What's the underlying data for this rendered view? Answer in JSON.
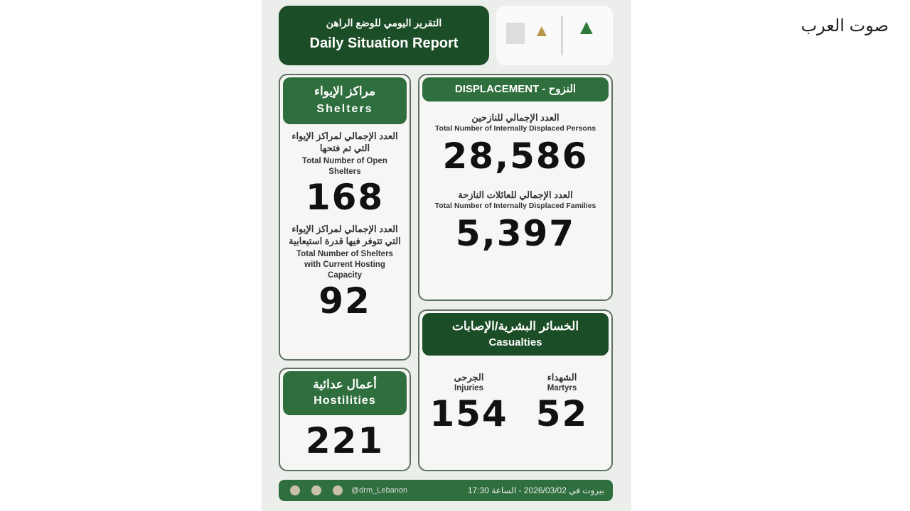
{
  "watermark": "صوت العرب",
  "header": {
    "title_ar": "التقرير اليومي للوضع الراهن",
    "title_en": "Daily Situation Report"
  },
  "shelters": {
    "title_ar": "مراكز الإيواء",
    "title_en": "Shelters",
    "open_label_ar": "العدد الإجمالي لمراكز الإيواء التي تم فتحها",
    "open_label_en": "Total Number of Open Shelters",
    "open_value": "168",
    "capacity_label_ar": "العدد الإجمالي لمراكز الإيواء التي تتوفر فيها قدرة استيعابية",
    "capacity_label_en": "Total Number of Shelters with Current Hosting Capacity",
    "capacity_value": "92"
  },
  "hostilities": {
    "title_ar": "أعمال عدائية",
    "title_en": "Hostilities",
    "value": "221"
  },
  "displacement": {
    "title": "DISPLACEMENT - النزوح",
    "persons_label_ar": "العدد الإجمالي للنازحين",
    "persons_label_en": "Total Number of Internally Displaced Persons",
    "persons_value": "28,586",
    "families_label_ar": "العدد الإجمالي للعائلات النازحة",
    "families_label_en": "Total Number of Internally Displaced Families",
    "families_value": "5,397"
  },
  "casualties": {
    "title_ar": "الخسائر البشرية/الإصابات",
    "title_en": "Casualties",
    "injuries_ar": "الجرحى",
    "injuries_en": "Injuries",
    "injuries_value": "154",
    "martyrs_ar": "الشهداء",
    "martyrs_en": "Martyrs",
    "martyrs_value": "52"
  },
  "footer": {
    "handle": "@drm_Lebanon",
    "date": "بيروت في 2026/03/02 - الساعة 17:30"
  },
  "icons": [
    "facebook-icon",
    "x-icon",
    "instagram-icon",
    "cedar-logo"
  ],
  "colors": {
    "green": "#2f6e3d",
    "dark_green": "#1b4d26"
  }
}
